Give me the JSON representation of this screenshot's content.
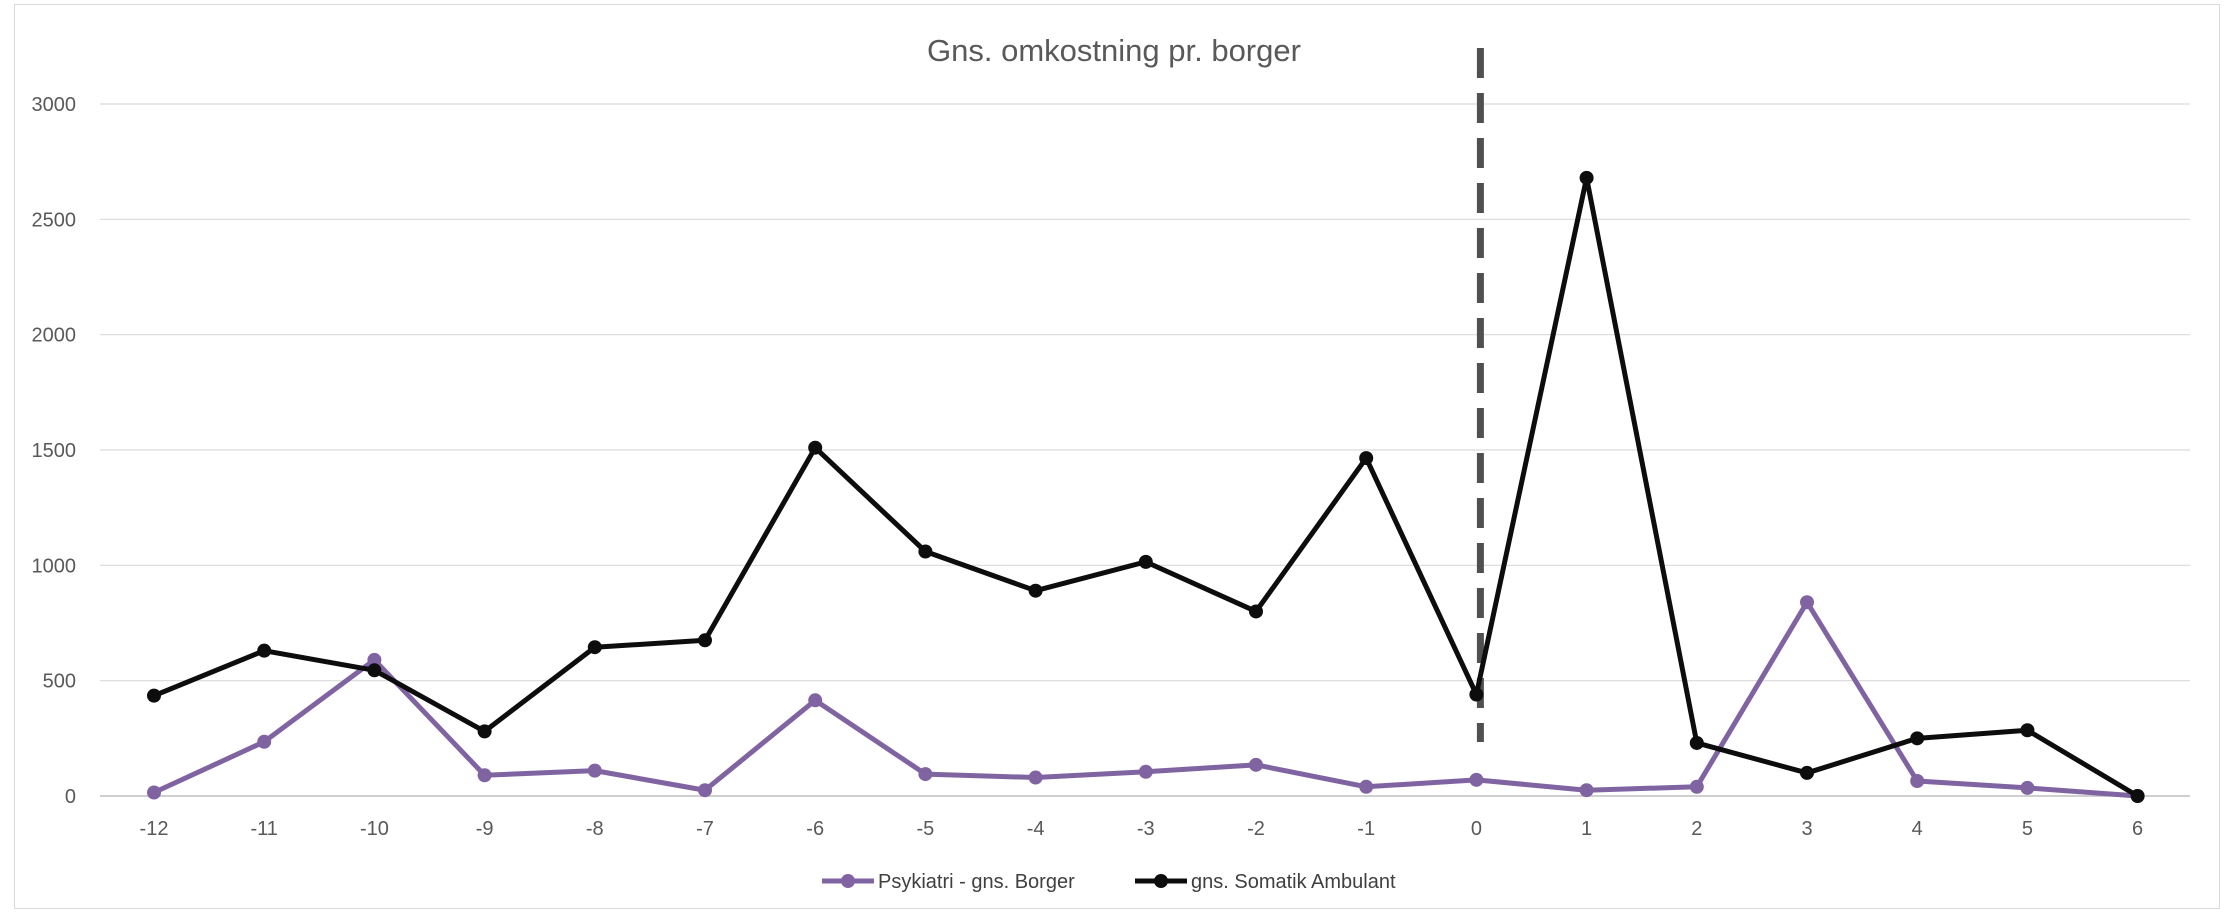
{
  "chart_data": {
    "type": "line",
    "title": "Gns. omkostning pr. borger",
    "xlabel": "",
    "ylabel": "",
    "categories": [
      "-12",
      "-11",
      "-10",
      "-9",
      "-8",
      "-7",
      "-6",
      "-5",
      "-4",
      "-3",
      "-2",
      "-1",
      "0",
      "1",
      "2",
      "3",
      "4",
      "5",
      "6"
    ],
    "ylim": [
      0,
      3000
    ],
    "yticks": [
      "0",
      "500",
      "1000",
      "1500",
      "2000",
      "2500",
      "3000"
    ],
    "grid": true,
    "legend_position": "bottom",
    "reference_line": {
      "x": "0",
      "style": "dashed",
      "color": "#505050"
    },
    "series": [
      {
        "name": "Psykiatri - gns. Borger",
        "color": "#8064a2",
        "values": [
          15,
          235,
          590,
          90,
          110,
          25,
          415,
          95,
          80,
          105,
          135,
          40,
          70,
          25,
          40,
          840,
          65,
          35,
          0
        ]
      },
      {
        "name": "gns. Somatik Ambulant",
        "color": "#0d0d0d",
        "values": [
          435,
          630,
          545,
          280,
          645,
          675,
          1510,
          1060,
          890,
          1015,
          800,
          1465,
          440,
          2680,
          230,
          100,
          250,
          285,
          0
        ]
      }
    ]
  }
}
